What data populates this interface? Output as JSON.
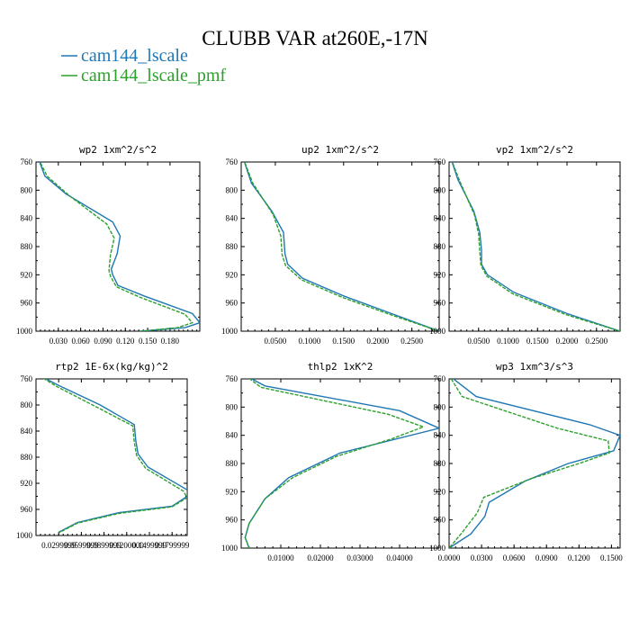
{
  "title": "CLUBB VAR at260E,-17N",
  "legend": [
    {
      "name": "cam144_lscale",
      "color": "#1f77b4"
    },
    {
      "name": "cam144_lscale_pmf",
      "color": "#2ca02c"
    }
  ],
  "chart_data": [
    {
      "type": "line",
      "title": "wp2  1xm^2/s^2",
      "xlim": [
        0.0,
        0.22
      ],
      "ylim": [
        760,
        1000
      ],
      "yticks": [
        760,
        800,
        840,
        880,
        920,
        960,
        1000
      ],
      "yticklabels": [
        "760",
        "800",
        "840",
        "880",
        "920",
        "960",
        "1000"
      ],
      "xticks": [
        0.03,
        0.06,
        0.09,
        0.12,
        0.15,
        0.18
      ],
      "xticklabels": [
        "0.030",
        "0.060",
        "0.090",
        "0.120",
        "0.150",
        "0.180"
      ],
      "series": [
        {
          "name": "cam144_lscale",
          "x": [
            0.003,
            0.012,
            0.04,
            0.103,
            0.113,
            0.109,
            0.101,
            0.103,
            0.11,
            0.145,
            0.21,
            0.22,
            0.2,
            0.14
          ],
          "y": [
            755,
            780,
            805,
            845,
            865,
            890,
            912,
            920,
            935,
            950,
            975,
            988,
            995,
            1000
          ]
        },
        {
          "name": "cam144_lscale_pmf",
          "x": [
            0.003,
            0.015,
            0.045,
            0.095,
            0.105,
            0.1,
            0.098,
            0.1,
            0.108,
            0.14,
            0.2,
            0.21,
            0.19,
            0.14
          ],
          "y": [
            755,
            780,
            808,
            848,
            868,
            892,
            914,
            922,
            937,
            952,
            976,
            988,
            995,
            1000
          ]
        }
      ]
    },
    {
      "type": "line",
      "title": "up2  1xm^2/s^2",
      "xlim": [
        0.0,
        0.29
      ],
      "ylim": [
        760,
        1000
      ],
      "yticks": [
        760,
        800,
        840,
        880,
        920,
        960,
        1000
      ],
      "yticklabels": [
        "760",
        "800",
        "840",
        "880",
        "920",
        "960",
        "1000"
      ],
      "xticks": [
        0.05,
        0.1,
        0.15,
        0.2,
        0.25
      ],
      "xticklabels": [
        "0.0500",
        "0.1000",
        "0.1500",
        "0.2000",
        "0.2500"
      ],
      "series": [
        {
          "name": "cam144_lscale",
          "x": [
            0.003,
            0.015,
            0.045,
            0.062,
            0.064,
            0.068,
            0.09,
            0.15,
            0.22,
            0.29
          ],
          "y": [
            755,
            790,
            830,
            860,
            890,
            905,
            925,
            950,
            975,
            1000
          ]
        },
        {
          "name": "cam144_lscale_pmf",
          "x": [
            0.003,
            0.017,
            0.047,
            0.058,
            0.06,
            0.065,
            0.088,
            0.148,
            0.22,
            0.29
          ],
          "y": [
            755,
            790,
            835,
            865,
            892,
            907,
            927,
            952,
            977,
            1000
          ]
        }
      ]
    },
    {
      "type": "line",
      "title": "vp2  1xm^2/s^2",
      "xlim": [
        0.0,
        0.29
      ],
      "ylim": [
        760,
        1000
      ],
      "yticks": [
        760,
        800,
        840,
        880,
        920,
        960,
        1000
      ],
      "yticklabels": [
        "760",
        "800",
        "840",
        "880",
        "920",
        "960",
        "1000"
      ],
      "xticks": [
        0.05,
        0.1,
        0.15,
        0.2,
        0.25
      ],
      "xticklabels": [
        "0.0500",
        "0.1000",
        "0.1500",
        "0.2000",
        "0.2500"
      ],
      "series": [
        {
          "name": "cam144_lscale",
          "x": [
            0.003,
            0.015,
            0.042,
            0.052,
            0.055,
            0.055,
            0.065,
            0.11,
            0.2,
            0.29
          ],
          "y": [
            755,
            785,
            830,
            860,
            885,
            905,
            920,
            945,
            975,
            1000
          ]
        },
        {
          "name": "cam144_lscale_pmf",
          "x": [
            0.003,
            0.018,
            0.043,
            0.05,
            0.052,
            0.054,
            0.064,
            0.108,
            0.2,
            0.29
          ],
          "y": [
            755,
            787,
            835,
            862,
            887,
            907,
            922,
            947,
            977,
            1000
          ]
        }
      ]
    },
    {
      "type": "line",
      "title": "rtp2  1E-6x(kg/kg)^2",
      "xlim": [
        0.0,
        0.2
      ],
      "ylim": [
        760,
        1000
      ],
      "yticks": [
        760,
        800,
        840,
        880,
        920,
        960,
        1000
      ],
      "yticklabels": [
        "760",
        "800",
        "840",
        "880",
        "920",
        "960",
        "1000"
      ],
      "xticks": [
        0.03,
        0.06,
        0.09,
        0.12,
        0.15,
        0.18
      ],
      "xticklabels": [
        "0.0299999",
        "0.0599999",
        "0.0899999",
        "0.1200000",
        "0.1499999",
        "0.1799999"
      ],
      "series": [
        {
          "name": "cam144_lscale",
          "x": [
            0.005,
            0.03,
            0.085,
            0.13,
            0.132,
            0.135,
            0.148,
            0.2,
            0.2,
            0.18,
            0.11,
            0.055,
            0.03
          ],
          "y": [
            755,
            770,
            800,
            830,
            855,
            875,
            895,
            930,
            940,
            955,
            965,
            980,
            995
          ]
        },
        {
          "name": "cam144_lscale_pmf",
          "x": [
            0.004,
            0.028,
            0.08,
            0.128,
            0.13,
            0.133,
            0.145,
            0.195,
            0.2,
            0.18,
            0.11,
            0.055,
            0.03
          ],
          "y": [
            755,
            772,
            803,
            832,
            857,
            877,
            897,
            932,
            942,
            956,
            966,
            981,
            996
          ]
        }
      ]
    },
    {
      "type": "line",
      "title": "thlp2  1xK^2",
      "xlim": [
        0.0,
        0.05
      ],
      "ylim": [
        760,
        1000
      ],
      "yticks": [
        760,
        800,
        840,
        880,
        920,
        960,
        1000
      ],
      "yticklabels": [
        "760",
        "800",
        "840",
        "880",
        "920",
        "960",
        "1000"
      ],
      "xticks": [
        0.01,
        0.02,
        0.03,
        0.04
      ],
      "xticklabels": [
        "0.01000",
        "0.02000",
        "0.03000",
        "0.04000"
      ],
      "series": [
        {
          "name": "cam144_lscale",
          "x": [
            0.001,
            0.006,
            0.04,
            0.05,
            0.025,
            0.012,
            0.006,
            0.002,
            0.001,
            0.002
          ],
          "y": [
            755,
            770,
            805,
            830,
            865,
            900,
            930,
            965,
            985,
            1000
          ]
        },
        {
          "name": "cam144_lscale_pmf",
          "x": [
            0.001,
            0.005,
            0.037,
            0.046,
            0.038,
            0.024,
            0.013,
            0.006,
            0.002,
            0.001,
            0.002
          ],
          "y": [
            755,
            772,
            810,
            828,
            845,
            870,
            900,
            930,
            965,
            985,
            1000
          ]
        }
      ]
    },
    {
      "type": "line",
      "title": "wp3  1xm^3/s^3",
      "xlim": [
        0.0,
        0.158
      ],
      "ylim": [
        760,
        1000
      ],
      "yticks": [
        760,
        800,
        840,
        880,
        920,
        960,
        1000
      ],
      "yticklabels": [
        "760",
        "800",
        "840",
        "880",
        "920",
        "960",
        "1000"
      ],
      "xticks": [
        0.0,
        0.03,
        0.06,
        0.09,
        0.12,
        0.15
      ],
      "xticklabels": [
        "0.0000",
        "0.0300",
        "0.0600",
        "0.0900",
        "0.1200",
        "0.1500"
      ],
      "series": [
        {
          "name": "cam144_lscale",
          "x": [
            0.004,
            0.025,
            0.13,
            0.158,
            0.152,
            0.11,
            0.07,
            0.037,
            0.033,
            0.02,
            0.0
          ],
          "y": [
            760,
            785,
            825,
            840,
            862,
            880,
            905,
            935,
            955,
            980,
            1000
          ]
        },
        {
          "name": "cam144_lscale_pmf",
          "x": [
            0.002,
            0.012,
            0.1,
            0.147,
            0.148,
            0.12,
            0.075,
            0.032,
            0.026,
            0.012,
            0.0
          ],
          "y": [
            760,
            785,
            830,
            848,
            865,
            880,
            902,
            928,
            950,
            978,
            1000
          ]
        }
      ]
    }
  ]
}
